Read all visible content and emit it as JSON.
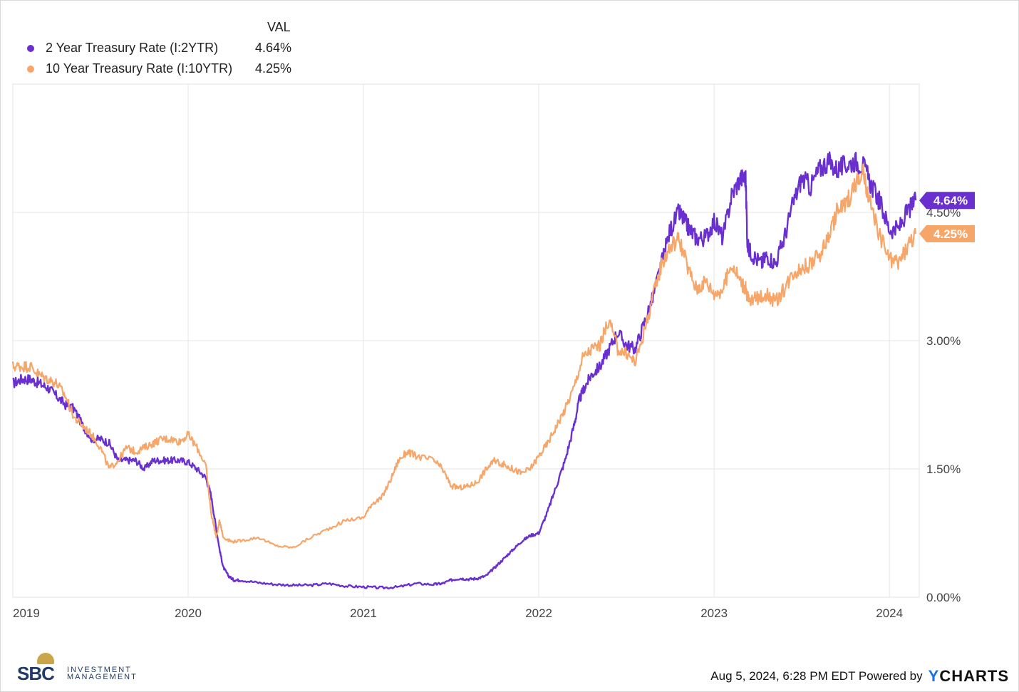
{
  "legend": {
    "header": "VAL",
    "items": [
      {
        "name": "2 Year Treasury Rate (I:2YTR)",
        "value": "4.64%",
        "color": "#6a2fcf"
      },
      {
        "name": "10 Year Treasury Rate (I:10YTR)",
        "value": "4.25%",
        "color": "#f7a66a"
      }
    ]
  },
  "footer": {
    "timestamp": "Aug 5, 2024, 6:28 PM EDT Powered by",
    "brand_y": "Y",
    "brand_rest": "CHARTS"
  },
  "logo": {
    "main": "SBC",
    "sub1": "INVESTMENT",
    "sub2": "MANAGEMENT"
  },
  "chart_data": {
    "type": "line",
    "xlabel": "",
    "ylabel": "",
    "ylim": [
      0,
      6
    ],
    "xlim": [
      2019.0,
      2024.17
    ],
    "x_ticks": [
      "2019",
      "2020",
      "2021",
      "2022",
      "2023",
      "2024"
    ],
    "y_ticks": [
      "0.00%",
      "1.50%",
      "3.00%",
      "4.50%"
    ],
    "grid": true,
    "legend_placement": "top-left",
    "series": [
      {
        "name": "2 Year Treasury Rate (I:2YTR)",
        "color": "#6a2fcf",
        "end_label": "4.64%",
        "x": [
          2019.0,
          2019.05,
          2019.1,
          2019.15,
          2019.2,
          2019.25,
          2019.3,
          2019.35,
          2019.4,
          2019.45,
          2019.5,
          2019.55,
          2019.6,
          2019.65,
          2019.7,
          2019.75,
          2019.8,
          2019.85,
          2019.9,
          2019.95,
          2020.0,
          2020.05,
          2020.1,
          2020.13,
          2020.16,
          2020.18,
          2020.2,
          2020.23,
          2020.26,
          2020.3,
          2020.4,
          2020.5,
          2020.6,
          2020.7,
          2020.8,
          2020.9,
          2021.0,
          2021.1,
          2021.2,
          2021.3,
          2021.4,
          2021.45,
          2021.5,
          2021.55,
          2021.6,
          2021.65,
          2021.7,
          2021.75,
          2021.8,
          2021.85,
          2021.9,
          2021.95,
          2022.0,
          2022.05,
          2022.1,
          2022.15,
          2022.2,
          2022.23,
          2022.26,
          2022.3,
          2022.35,
          2022.4,
          2022.45,
          2022.5,
          2022.55,
          2022.6,
          2022.65,
          2022.7,
          2022.75,
          2022.8,
          2022.83,
          2022.86,
          2022.9,
          2022.95,
          2023.0,
          2023.05,
          2023.1,
          2023.15,
          2023.18,
          2023.19,
          2023.22,
          2023.27,
          2023.3,
          2023.35,
          2023.4,
          2023.45,
          2023.5,
          2023.55,
          2023.6,
          2023.65,
          2023.7,
          2023.75,
          2023.8,
          2023.85,
          2023.9,
          2023.95,
          2024.0,
          2024.05,
          2024.1,
          2024.15
        ],
        "y": [
          2.5,
          2.55,
          2.55,
          2.5,
          2.45,
          2.35,
          2.25,
          2.2,
          2.0,
          1.85,
          1.85,
          1.8,
          1.6,
          1.6,
          1.6,
          1.5,
          1.6,
          1.6,
          1.6,
          1.6,
          1.58,
          1.5,
          1.4,
          1.2,
          0.8,
          0.55,
          0.35,
          0.25,
          0.2,
          0.2,
          0.17,
          0.15,
          0.14,
          0.14,
          0.16,
          0.13,
          0.12,
          0.11,
          0.12,
          0.16,
          0.15,
          0.16,
          0.2,
          0.22,
          0.21,
          0.22,
          0.25,
          0.35,
          0.45,
          0.55,
          0.65,
          0.72,
          0.75,
          1.0,
          1.3,
          1.6,
          2.0,
          2.3,
          2.45,
          2.6,
          2.7,
          2.9,
          3.1,
          2.95,
          2.9,
          3.2,
          3.5,
          3.9,
          4.3,
          4.5,
          4.4,
          4.3,
          4.2,
          4.2,
          4.4,
          4.2,
          4.7,
          4.9,
          4.9,
          4.1,
          4.0,
          3.9,
          4.0,
          3.9,
          4.2,
          4.6,
          4.9,
          4.8,
          5.0,
          5.1,
          5.0,
          5.05,
          5.1,
          5.05,
          4.8,
          4.6,
          4.3,
          4.3,
          4.5,
          4.64
        ]
      },
      {
        "name": "10 Year Treasury Rate (I:10YTR)",
        "color": "#f7a66a",
        "end_label": "4.25%",
        "x": [
          2019.0,
          2019.05,
          2019.1,
          2019.15,
          2019.2,
          2019.25,
          2019.3,
          2019.35,
          2019.4,
          2019.45,
          2019.5,
          2019.55,
          2019.6,
          2019.65,
          2019.7,
          2019.75,
          2019.8,
          2019.85,
          2019.9,
          2019.95,
          2020.0,
          2020.05,
          2020.1,
          2020.13,
          2020.16,
          2020.18,
          2020.2,
          2020.25,
          2020.3,
          2020.4,
          2020.5,
          2020.6,
          2020.7,
          2020.8,
          2020.9,
          2021.0,
          2021.05,
          2021.1,
          2021.15,
          2021.2,
          2021.25,
          2021.3,
          2021.4,
          2021.45,
          2021.5,
          2021.55,
          2021.6,
          2021.65,
          2021.7,
          2021.75,
          2021.8,
          2021.85,
          2021.9,
          2021.95,
          2022.0,
          2022.05,
          2022.1,
          2022.15,
          2022.2,
          2022.25,
          2022.3,
          2022.35,
          2022.4,
          2022.45,
          2022.5,
          2022.55,
          2022.6,
          2022.65,
          2022.7,
          2022.75,
          2022.8,
          2022.85,
          2022.9,
          2022.95,
          2023.0,
          2023.05,
          2023.1,
          2023.15,
          2023.18,
          2023.2,
          2023.25,
          2023.3,
          2023.35,
          2023.4,
          2023.45,
          2023.5,
          2023.55,
          2023.6,
          2023.65,
          2023.7,
          2023.75,
          2023.8,
          2023.85,
          2023.9,
          2023.95,
          2024.0,
          2024.05,
          2024.1,
          2024.15
        ],
        "y": [
          2.7,
          2.7,
          2.7,
          2.6,
          2.55,
          2.5,
          2.35,
          2.1,
          2.0,
          1.9,
          1.75,
          1.5,
          1.6,
          1.75,
          1.7,
          1.75,
          1.8,
          1.85,
          1.85,
          1.82,
          1.9,
          1.75,
          1.55,
          1.0,
          0.7,
          0.9,
          0.7,
          0.65,
          0.66,
          0.7,
          0.6,
          0.58,
          0.7,
          0.8,
          0.9,
          0.93,
          1.1,
          1.15,
          1.35,
          1.6,
          1.7,
          1.65,
          1.6,
          1.5,
          1.3,
          1.28,
          1.3,
          1.35,
          1.5,
          1.6,
          1.55,
          1.5,
          1.45,
          1.5,
          1.65,
          1.8,
          2.0,
          2.2,
          2.45,
          2.8,
          2.9,
          2.95,
          3.25,
          2.9,
          2.85,
          2.75,
          3.1,
          3.5,
          3.9,
          4.1,
          4.2,
          3.85,
          3.6,
          3.7,
          3.55,
          3.6,
          3.9,
          3.7,
          3.6,
          3.45,
          3.5,
          3.55,
          3.45,
          3.6,
          3.8,
          3.85,
          3.9,
          4.0,
          4.2,
          4.5,
          4.6,
          4.8,
          4.95,
          4.5,
          4.2,
          3.95,
          3.9,
          4.1,
          4.25
        ]
      }
    ]
  }
}
